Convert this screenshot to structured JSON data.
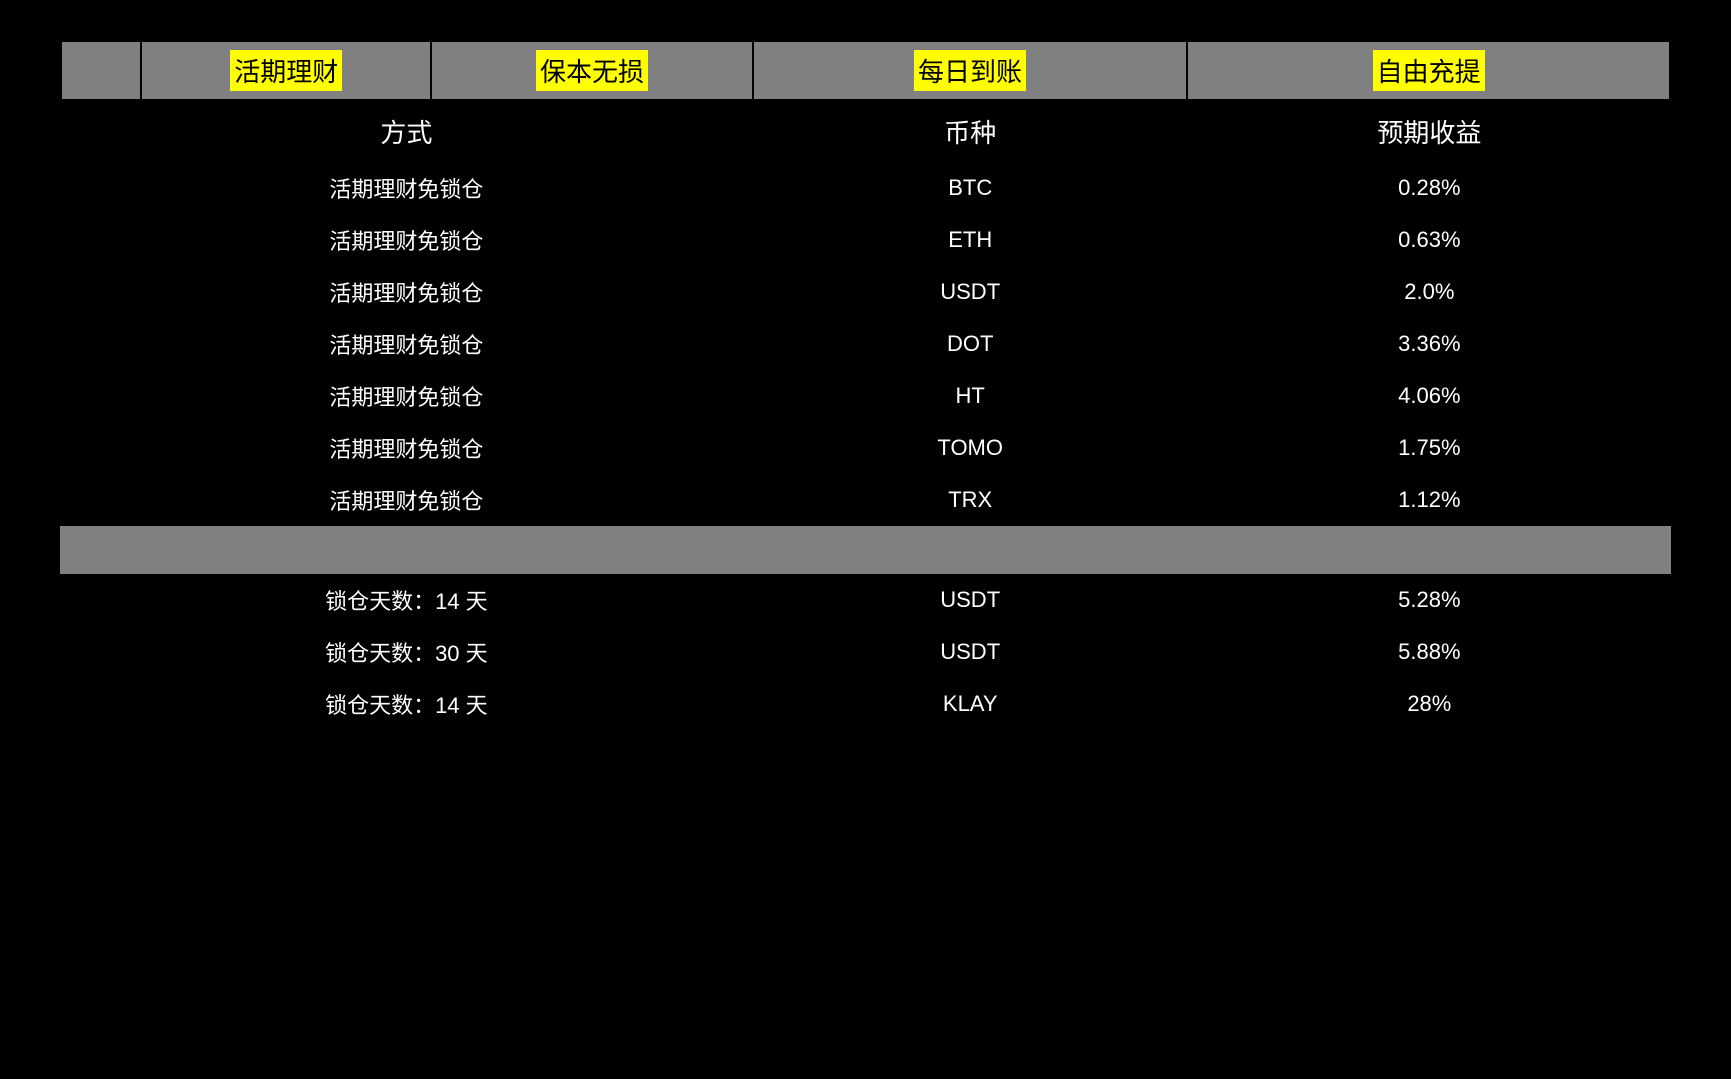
{
  "features": {
    "items": [
      "活期理财",
      "保本无损",
      "每日到账",
      "自由充提"
    ],
    "highlight_color": "#ffff00",
    "bg_color": "#808080",
    "text_color": "#000000",
    "border_color": "#000000"
  },
  "columns": {
    "method": "方式",
    "coin": "币种",
    "yield": "预期收益"
  },
  "section1": {
    "rows": [
      {
        "method": "活期理财免锁仓",
        "coin": "BTC",
        "yield": "0.28%"
      },
      {
        "method": "活期理财免锁仓",
        "coin": "ETH",
        "yield": "0.63%"
      },
      {
        "method": "活期理财免锁仓",
        "coin": "USDT",
        "yield": "2.0%"
      },
      {
        "method": "活期理财免锁仓",
        "coin": "DOT",
        "yield": "3.36%"
      },
      {
        "method": "活期理财免锁仓",
        "coin": "HT",
        "yield": "4.06%"
      },
      {
        "method": "活期理财免锁仓",
        "coin": "TOMO",
        "yield": "1.75%"
      },
      {
        "method": "活期理财免锁仓",
        "coin": "TRX",
        "yield": "1.12%"
      }
    ]
  },
  "divider": {
    "bg_color": "#808080"
  },
  "section2": {
    "rows": [
      {
        "method": "锁仓天数：14 天",
        "coin": "USDT",
        "yield": "5.28%"
      },
      {
        "method": "锁仓天数：30 天",
        "coin": "USDT",
        "yield": "5.88%"
      },
      {
        "method": "锁仓天数：14 天",
        "coin": "KLAY",
        "yield": "28%"
      }
    ]
  },
  "styles": {
    "page_bg": "#000000",
    "text_color": "#ffffff",
    "header_fontsize": 26,
    "row_fontsize": 22,
    "font_family": "SimSun"
  }
}
